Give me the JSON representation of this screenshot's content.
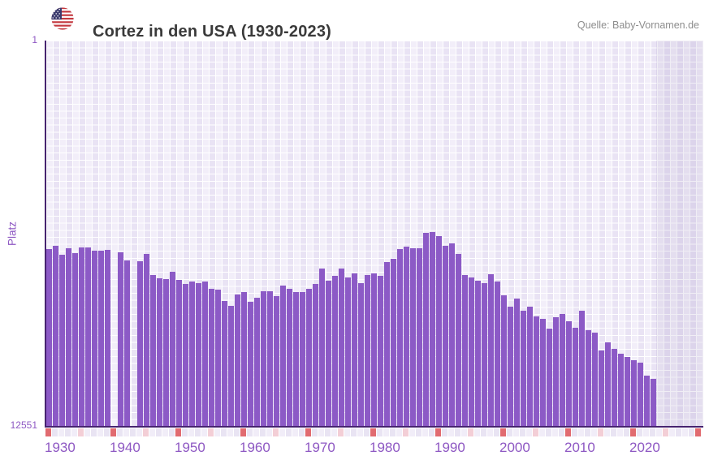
{
  "header": {
    "title": "Cortez in den USA (1930-2023)",
    "source": "Quelle: Baby-Vornamen.de",
    "flag_icon": "us-flag-icon"
  },
  "chart_data": {
    "type": "bar",
    "title": "Cortez in den USA (1930-2023)",
    "ylabel": "Platz",
    "legend": "none",
    "grid": "on",
    "y_axis": {
      "top_label": "1",
      "bottom_label": "12551",
      "min": 1,
      "max": 12551,
      "inverted": true
    },
    "x_axis": {
      "first_year": 1930,
      "last_year": 2023,
      "tick_row_end_year": 2030,
      "decade_labels": [
        "1930",
        "1940",
        "1950",
        "1960",
        "1970",
        "1980",
        "1990",
        "2000",
        "2010",
        "2020"
      ]
    },
    "missing_years": [
      1940,
      1943
    ],
    "x": [
      1930,
      1931,
      1932,
      1933,
      1934,
      1935,
      1936,
      1937,
      1938,
      1939,
      1940,
      1941,
      1942,
      1943,
      1944,
      1945,
      1946,
      1947,
      1948,
      1949,
      1950,
      1951,
      1952,
      1953,
      1954,
      1955,
      1956,
      1957,
      1958,
      1959,
      1960,
      1961,
      1962,
      1963,
      1964,
      1965,
      1966,
      1967,
      1968,
      1969,
      1970,
      1971,
      1972,
      1973,
      1974,
      1975,
      1976,
      1977,
      1978,
      1979,
      1980,
      1981,
      1982,
      1983,
      1984,
      1985,
      1986,
      1987,
      1988,
      1989,
      1990,
      1991,
      1992,
      1993,
      1994,
      1995,
      1996,
      1997,
      1998,
      1999,
      2000,
      2001,
      2002,
      2003,
      2004,
      2005,
      2006,
      2007,
      2008,
      2009,
      2010,
      2011,
      2012,
      2013,
      2014,
      2015,
      2016,
      2017,
      2018,
      2019,
      2020,
      2021,
      2022,
      2023
    ],
    "values": [
      6783,
      6694,
      6976,
      6757,
      6915,
      6731,
      6731,
      6836,
      6836,
      6818,
      null,
      6897,
      7161,
      null,
      7180,
      6957,
      7644,
      7734,
      7776,
      7530,
      7795,
      7927,
      7856,
      7909,
      7840,
      8078,
      8120,
      8482,
      8632,
      8262,
      8191,
      8500,
      8384,
      8173,
      8165,
      8323,
      7988,
      8086,
      8191,
      8191,
      8078,
      7927,
      7425,
      7813,
      7662,
      7425,
      7707,
      7591,
      7900,
      7636,
      7591,
      7662,
      7221,
      7115,
      6783,
      6712,
      6765,
      6765,
      6271,
      6236,
      6360,
      6694,
      6606,
      6941,
      7644,
      7707,
      7813,
      7893,
      7610,
      7840,
      8305,
      8659,
      8394,
      8807,
      8659,
      8984,
      9071,
      9380,
      9002,
      8897,
      9135,
      9362,
      8807,
      9425,
      9512,
      10085,
      9821,
      10040,
      10199,
      10304,
      10410,
      10489,
      10904,
      11025
    ],
    "colors": {
      "bar": "#8c5ac6",
      "axis": "#472470",
      "label": "#8e58c3",
      "decade-tick": "#e16b70",
      "half-tick": "#f3ced6",
      "title-text": "#3a3a3a",
      "source-text": "#8d8d8d"
    }
  }
}
